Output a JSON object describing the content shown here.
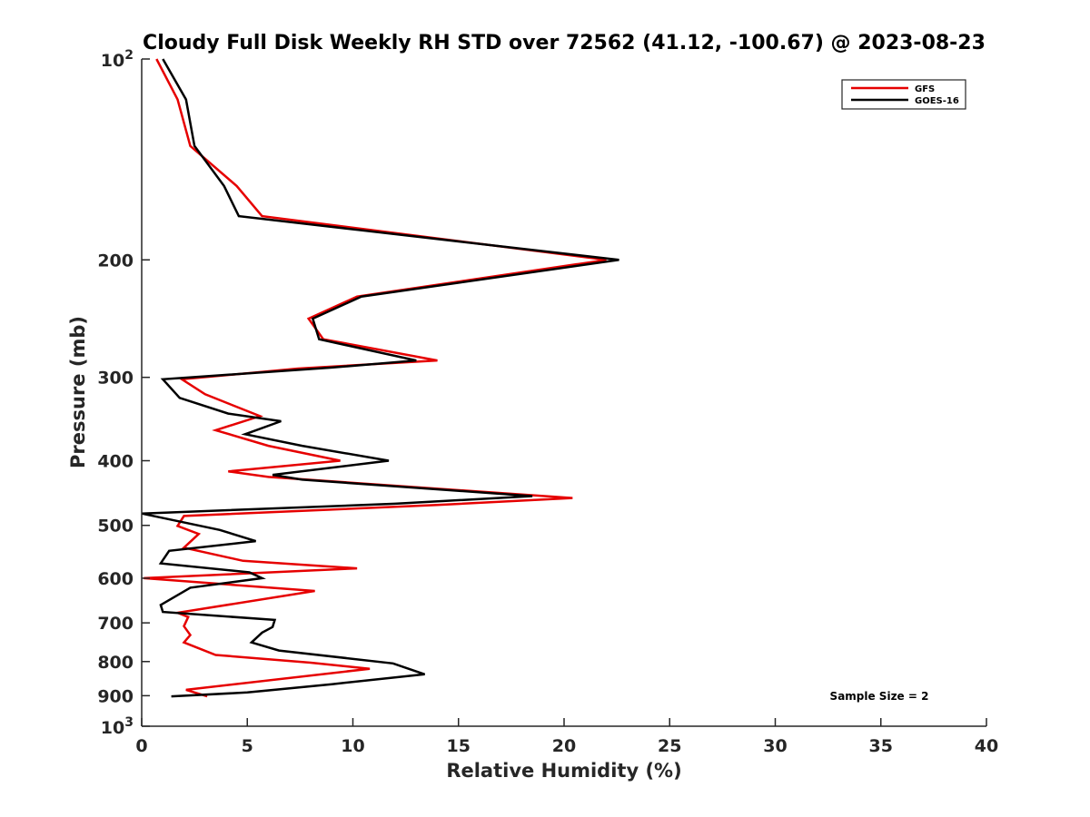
{
  "chart_data": {
    "type": "line",
    "title": "Cloudy Full Disk Weekly RH STD over 72562 (41.12, -100.67) @ 2023-08-23",
    "xlabel": "Relative Humidity (%)",
    "ylabel": "Pressure (mb)",
    "xlim": [
      0,
      40
    ],
    "ylim": [
      100,
      1000
    ],
    "yscale": "log",
    "y_reversed": true,
    "grid": false,
    "legend_position": "top-right",
    "x_ticks": [
      0,
      5,
      10,
      15,
      20,
      25,
      30,
      35,
      40
    ],
    "x_tick_labels": [
      "0",
      "5",
      "10",
      "15",
      "20",
      "25",
      "30",
      "35",
      "40"
    ],
    "y_ticks": [
      200,
      300,
      400,
      500,
      600,
      700,
      800,
      900
    ],
    "y_tick_labels": [
      "200",
      "300",
      "400",
      "500",
      "600",
      "700",
      "800",
      "900"
    ],
    "y_decade_ticks": [
      {
        "value": 100,
        "base": "10",
        "exp": "2"
      },
      {
        "value": 1000,
        "base": "10",
        "exp": "3"
      }
    ],
    "annotation": "Sample Size = 2",
    "series": [
      {
        "name": "GFS",
        "color": "#e60000",
        "points": [
          [
            0.7,
            100
          ],
          [
            1.7,
            115
          ],
          [
            2.3,
            135
          ],
          [
            4.5,
            155
          ],
          [
            5.7,
            172
          ],
          [
            22.0,
            200
          ],
          [
            10.2,
            227
          ],
          [
            7.9,
            245
          ],
          [
            8.6,
            263
          ],
          [
            14.0,
            283
          ],
          [
            7.4,
            291
          ],
          [
            1.9,
            302
          ],
          [
            3.0,
            318
          ],
          [
            5.6,
            343
          ],
          [
            3.5,
            360
          ],
          [
            6.0,
            380
          ],
          [
            9.4,
            400
          ],
          [
            4.1,
            415
          ],
          [
            6.0,
            423
          ],
          [
            20.4,
            455
          ],
          [
            14.0,
            466
          ],
          [
            2.0,
            484
          ],
          [
            1.7,
            501
          ],
          [
            2.7,
            515
          ],
          [
            2.0,
            540
          ],
          [
            4.8,
            565
          ],
          [
            10.2,
            580
          ],
          [
            0.1,
            600
          ],
          [
            8.2,
            627
          ],
          [
            1.7,
            676
          ],
          [
            2.2,
            686
          ],
          [
            2.0,
            708
          ],
          [
            2.3,
            730
          ],
          [
            2.0,
            749
          ],
          [
            3.5,
            782
          ],
          [
            8.0,
            803
          ],
          [
            10.8,
            820
          ],
          [
            2.1,
            882
          ],
          [
            3.1,
            902
          ]
        ]
      },
      {
        "name": "GOES-16",
        "color": "#000000",
        "points": [
          [
            1.0,
            100
          ],
          [
            2.1,
            115
          ],
          [
            2.5,
            135
          ],
          [
            3.9,
            155
          ],
          [
            4.6,
            172
          ],
          [
            22.6,
            200
          ],
          [
            10.4,
            227
          ],
          [
            8.1,
            245
          ],
          [
            8.4,
            263
          ],
          [
            13.0,
            283
          ],
          [
            9.0,
            290
          ],
          [
            1.0,
            302
          ],
          [
            1.8,
            322
          ],
          [
            4.1,
            340
          ],
          [
            6.6,
            349
          ],
          [
            4.9,
            365
          ],
          [
            7.6,
            380
          ],
          [
            11.7,
            400
          ],
          [
            6.2,
            420
          ],
          [
            7.6,
            427
          ],
          [
            18.5,
            452
          ],
          [
            12.0,
            464
          ],
          [
            0.0,
            480
          ],
          [
            3.7,
            508
          ],
          [
            5.4,
            528
          ],
          [
            1.3,
            546
          ],
          [
            0.9,
            570
          ],
          [
            5.1,
            588
          ],
          [
            5.7,
            600
          ],
          [
            2.3,
            620
          ],
          [
            0.9,
            658
          ],
          [
            1.0,
            674
          ],
          [
            6.3,
            693
          ],
          [
            6.2,
            710
          ],
          [
            5.7,
            724
          ],
          [
            5.2,
            749
          ],
          [
            6.5,
            770
          ],
          [
            11.9,
            805
          ],
          [
            13.4,
            836
          ],
          [
            9.0,
            865
          ],
          [
            5.0,
            890
          ],
          [
            1.4,
            902
          ]
        ]
      }
    ]
  }
}
